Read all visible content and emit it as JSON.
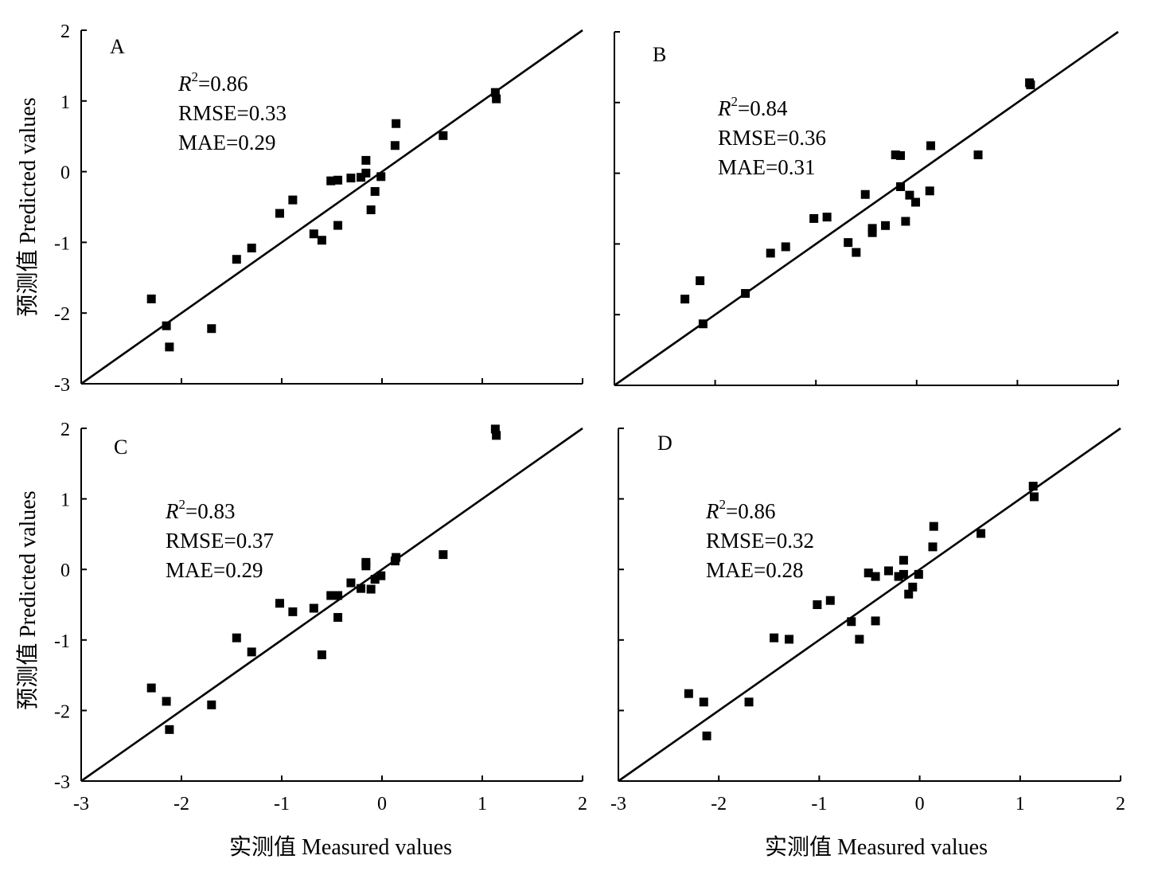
{
  "figure": {
    "ylabel": "预测值 Predicted values",
    "xlabel": "实测值 Measured values"
  },
  "chart_data": [
    {
      "type": "scatter",
      "panel": "A",
      "stats": {
        "r2": "=0.86",
        "rmse": "RMSE=0.33",
        "mae": "MAE=0.29"
      },
      "xlim": [
        -3,
        2
      ],
      "ylim": [
        -3,
        2
      ],
      "x_ticks": [
        "-3",
        "-2",
        "-1",
        "0",
        "1",
        "2"
      ],
      "y_ticks": [
        "2",
        "1",
        "0",
        "-1",
        "-2",
        "-3"
      ],
      "x_tick_labels_shown": false,
      "y_tick_labels_shown": true,
      "reference_line": "1:1",
      "points": [
        [
          -2.3,
          -1.8
        ],
        [
          -2.15,
          -2.18
        ],
        [
          -2.12,
          -2.48
        ],
        [
          -1.7,
          -2.22
        ],
        [
          -1.45,
          -1.24
        ],
        [
          -1.3,
          -1.08
        ],
        [
          -1.02,
          -0.59
        ],
        [
          -0.89,
          -0.4
        ],
        [
          -0.68,
          -0.88
        ],
        [
          -0.6,
          -0.97
        ],
        [
          -0.51,
          -0.13
        ],
        [
          -0.44,
          -0.12
        ],
        [
          -0.44,
          -0.76
        ],
        [
          -0.31,
          -0.09
        ],
        [
          -0.21,
          -0.08
        ],
        [
          -0.16,
          0.16
        ],
        [
          -0.16,
          -0.02
        ],
        [
          -0.11,
          -0.54
        ],
        [
          -0.07,
          -0.28
        ],
        [
          -0.01,
          -0.07
        ],
        [
          0.13,
          0.37
        ],
        [
          0.14,
          0.68
        ],
        [
          0.61,
          0.51
        ],
        [
          1.13,
          1.12
        ],
        [
          1.14,
          1.03
        ]
      ]
    },
    {
      "type": "scatter",
      "panel": "B",
      "stats": {
        "r2": "=0.84",
        "rmse": "RMSE=0.36",
        "mae": "MAE=0.31"
      },
      "xlim": [
        -3,
        2
      ],
      "ylim": [
        -3,
        2
      ],
      "x_ticks": [
        "-3",
        "-2",
        "-1",
        "0",
        "1",
        "2"
      ],
      "y_ticks": [
        "2",
        "1",
        "0",
        "-1",
        "-2",
        "-3"
      ],
      "x_tick_labels_shown": false,
      "y_tick_labels_shown": false,
      "reference_line": "1:1",
      "points": [
        [
          -2.3,
          -1.78
        ],
        [
          -2.15,
          -1.52
        ],
        [
          -2.12,
          -2.13
        ],
        [
          -1.7,
          -1.7
        ],
        [
          -1.45,
          -1.13
        ],
        [
          -1.3,
          -1.04
        ],
        [
          -1.02,
          -0.64
        ],
        [
          -0.89,
          -0.62
        ],
        [
          -0.68,
          -0.98
        ],
        [
          -0.6,
          -1.12
        ],
        [
          -0.51,
          -0.3
        ],
        [
          -0.44,
          -0.78
        ],
        [
          -0.44,
          -0.84
        ],
        [
          -0.31,
          -0.74
        ],
        [
          -0.21,
          0.26
        ],
        [
          -0.16,
          0.25
        ],
        [
          -0.16,
          -0.19
        ],
        [
          -0.11,
          -0.68
        ],
        [
          -0.07,
          -0.31
        ],
        [
          -0.01,
          -0.41
        ],
        [
          0.13,
          -0.25
        ],
        [
          0.14,
          0.39
        ],
        [
          0.61,
          0.26
        ],
        [
          1.12,
          1.28
        ],
        [
          1.13,
          1.25
        ]
      ]
    },
    {
      "type": "scatter",
      "panel": "C",
      "stats": {
        "r2": "=0.83",
        "rmse": "RMSE=0.37",
        "mae": "MAE=0.29"
      },
      "xlim": [
        -3,
        2
      ],
      "ylim": [
        -3,
        2
      ],
      "x_ticks": [
        "-3",
        "-2",
        "-1",
        "0",
        "1",
        "2"
      ],
      "y_ticks": [
        "2",
        "1",
        "0",
        "-1",
        "-2",
        "-3"
      ],
      "x_tick_labels_shown": true,
      "y_tick_labels_shown": true,
      "reference_line": "1:1",
      "points": [
        [
          -2.3,
          -1.68
        ],
        [
          -2.15,
          -1.87
        ],
        [
          -2.12,
          -2.27
        ],
        [
          -1.7,
          -1.92
        ],
        [
          -1.45,
          -0.97
        ],
        [
          -1.3,
          -1.17
        ],
        [
          -1.02,
          -0.48
        ],
        [
          -0.89,
          -0.6
        ],
        [
          -0.68,
          -0.55
        ],
        [
          -0.6,
          -1.21
        ],
        [
          -0.51,
          -0.37
        ],
        [
          -0.44,
          -0.37
        ],
        [
          -0.44,
          -0.68
        ],
        [
          -0.31,
          -0.19
        ],
        [
          -0.21,
          -0.27
        ],
        [
          -0.16,
          0.1
        ],
        [
          -0.16,
          0.05
        ],
        [
          -0.11,
          -0.28
        ],
        [
          -0.07,
          -0.14
        ],
        [
          -0.01,
          -0.09
        ],
        [
          0.13,
          0.12
        ],
        [
          0.14,
          0.17
        ],
        [
          0.61,
          0.21
        ],
        [
          1.13,
          1.99
        ],
        [
          1.14,
          1.9
        ]
      ]
    },
    {
      "type": "scatter",
      "panel": "D",
      "stats": {
        "r2": "=0.86",
        "rmse": "RMSE=0.32",
        "mae": "MAE=0.28"
      },
      "xlim": [
        -3,
        2
      ],
      "ylim": [
        -3,
        2
      ],
      "x_ticks": [
        "-3",
        "-2",
        "-1",
        "0",
        "1",
        "2"
      ],
      "y_ticks": [
        "2",
        "1",
        "0",
        "-1",
        "-2",
        "-3"
      ],
      "x_tick_labels_shown": true,
      "y_tick_labels_shown": false,
      "reference_line": "1:1",
      "points": [
        [
          -2.3,
          -1.76
        ],
        [
          -2.15,
          -1.88
        ],
        [
          -2.12,
          -2.36
        ],
        [
          -1.7,
          -1.88
        ],
        [
          -1.45,
          -0.97
        ],
        [
          -1.3,
          -0.99
        ],
        [
          -1.02,
          -0.5
        ],
        [
          -0.89,
          -0.44
        ],
        [
          -0.68,
          -0.74
        ],
        [
          -0.6,
          -0.99
        ],
        [
          -0.51,
          -0.05
        ],
        [
          -0.44,
          -0.1
        ],
        [
          -0.44,
          -0.73
        ],
        [
          -0.31,
          -0.02
        ],
        [
          -0.21,
          -0.1
        ],
        [
          -0.16,
          0.13
        ],
        [
          -0.16,
          -0.07
        ],
        [
          -0.11,
          -0.35
        ],
        [
          -0.07,
          -0.25
        ],
        [
          -0.01,
          -0.07
        ],
        [
          0.13,
          0.32
        ],
        [
          0.14,
          0.61
        ],
        [
          0.61,
          0.51
        ],
        [
          1.13,
          1.18
        ],
        [
          1.14,
          1.03
        ]
      ]
    }
  ]
}
